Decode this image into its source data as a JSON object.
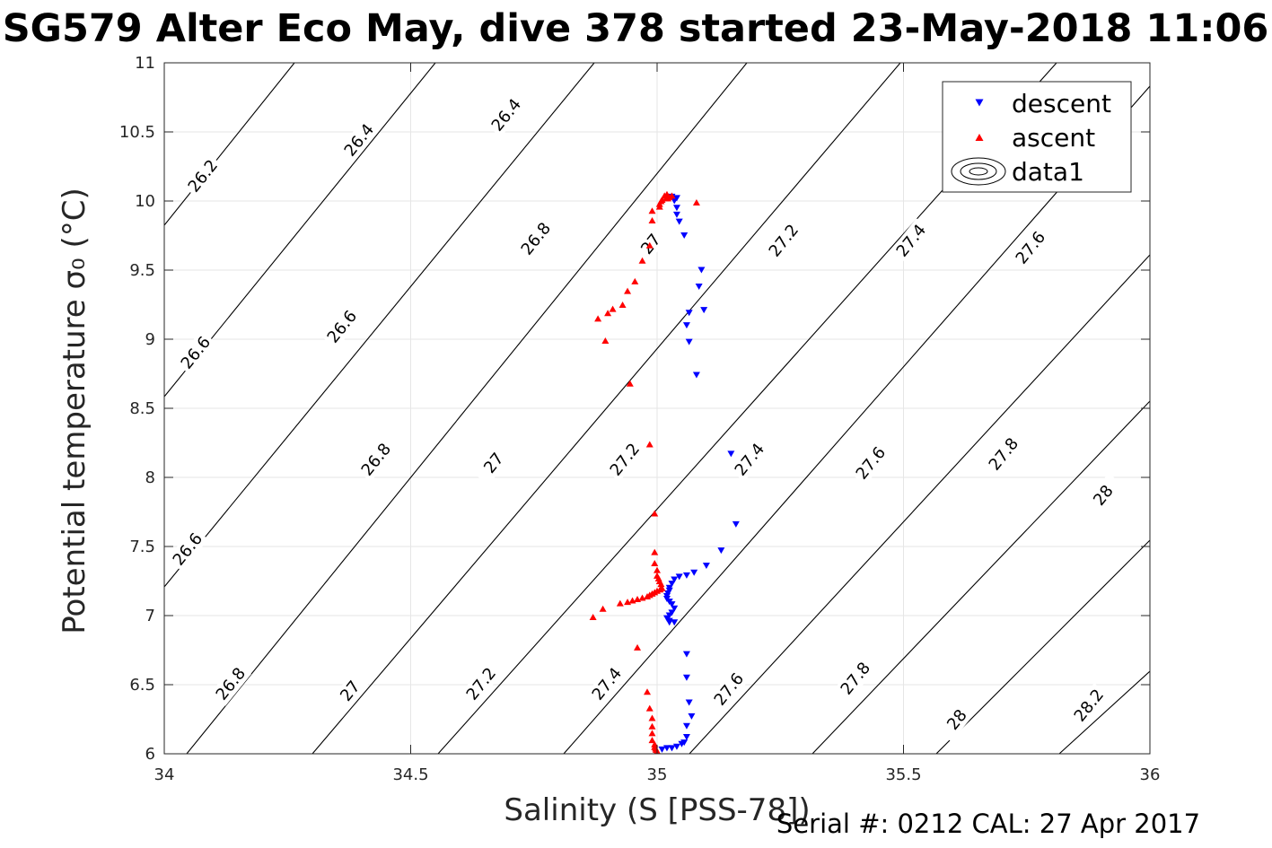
{
  "title": "SG579 Alter Eco May, dive 378 started 23-May-2018 11:06",
  "footnote": "Serial #: 0212  CAL: 27 Apr 2017",
  "chart_data": {
    "type": "scatter",
    "xlabel": "Salinity (S [PSS-78])",
    "ylabel": "Potential temperature σ₀ (°C)",
    "xlim": [
      34,
      36
    ],
    "ylim": [
      6,
      11
    ],
    "xticks": [
      34,
      34.5,
      35,
      35.5,
      36
    ],
    "yticks": [
      6,
      6.5,
      7,
      7.5,
      8,
      8.5,
      9,
      9.5,
      10,
      10.5,
      11
    ],
    "grid": true,
    "legend_position": "top-right",
    "legend": [
      "descent",
      "ascent",
      "data1"
    ],
    "colors": {
      "descent": "#0000ff",
      "ascent": "#ff0000",
      "contours": "#000000"
    },
    "contours": {
      "series_name": "data1",
      "label_values": [
        26.2,
        26.4,
        26.6,
        26.8,
        27,
        27.2,
        27.4,
        27.6,
        27.8,
        28,
        28.2
      ],
      "labels": [
        "26.2",
        "26.4",
        "26.4",
        "26.6",
        "26.6",
        "26.6",
        "26.8",
        "26.8",
        "26.8",
        "27",
        "27",
        "27",
        "27.2",
        "27.2",
        "27.2",
        "27.4",
        "27.4",
        "27.4",
        "27.6",
        "27.6",
        "27.6",
        "27.8",
        "27.8",
        "28",
        "28",
        "28.2"
      ]
    },
    "series": [
      {
        "name": "descent",
        "marker": "down-triangle",
        "x": [
          35.03,
          35.04,
          35.035,
          35.04,
          35.04,
          35.045,
          35.055,
          35.09,
          35.085,
          35.095,
          35.065,
          35.06,
          35.065,
          35.08,
          35.15,
          35.16,
          35.13,
          35.1,
          35.075,
          35.06,
          35.045,
          35.035,
          35.03,
          35.025,
          35.025,
          35.022,
          35.02,
          35.02,
          35.025,
          35.03,
          35.035,
          35.03,
          35.025,
          35.02,
          35.025,
          35.025,
          35.035,
          35.06,
          35.06,
          35.065,
          35.07,
          35.06,
          35.06,
          35.055,
          35.05,
          35.04,
          35.03,
          35.02,
          35.01
        ],
        "y": [
          10.03,
          10.02,
          10.0,
          9.95,
          9.9,
          9.85,
          9.75,
          9.5,
          9.38,
          9.21,
          9.19,
          9.1,
          8.98,
          8.74,
          8.17,
          7.66,
          7.47,
          7.36,
          7.31,
          7.29,
          7.28,
          7.26,
          7.23,
          7.2,
          7.18,
          7.16,
          7.14,
          7.12,
          7.1,
          7.08,
          7.05,
          7.02,
          7.0,
          6.98,
          6.96,
          6.95,
          6.95,
          6.72,
          6.55,
          6.37,
          6.27,
          6.2,
          6.12,
          6.08,
          6.07,
          6.05,
          6.04,
          6.04,
          6.03
        ]
      },
      {
        "name": "ascent",
        "marker": "up-triangle",
        "x": [
          35.02,
          35.03,
          35.015,
          35.025,
          35.022,
          35.018,
          35.01,
          35.008,
          35.005,
          35.005,
          35.08,
          34.99,
          34.99,
          34.985,
          34.97,
          34.955,
          34.94,
          34.93,
          34.91,
          34.9,
          34.88,
          34.895,
          34.945,
          34.985,
          34.995,
          34.995,
          34.995,
          35.0,
          35.0,
          35.003,
          35.005,
          35.008,
          35.01,
          35.006,
          35.0,
          34.995,
          34.99,
          34.985,
          34.98,
          34.97,
          34.96,
          34.95,
          34.94,
          34.925,
          34.89,
          34.87,
          34.96,
          34.98,
          34.985,
          34.99,
          34.99,
          34.99,
          34.99,
          34.995,
          34.995,
          34.997,
          34.998,
          35.0,
          35.0,
          35.0
        ],
        "y": [
          10.05,
          10.04,
          10.04,
          10.03,
          10.02,
          10.02,
          10.01,
          10.0,
          9.98,
          9.96,
          9.99,
          9.93,
          9.86,
          9.68,
          9.57,
          9.42,
          9.35,
          9.25,
          9.22,
          9.19,
          9.15,
          8.99,
          8.68,
          8.24,
          7.74,
          7.46,
          7.38,
          7.33,
          7.29,
          7.27,
          7.25,
          7.23,
          7.2,
          7.19,
          7.18,
          7.17,
          7.16,
          7.15,
          7.14,
          7.13,
          7.12,
          7.11,
          7.1,
          7.09,
          7.05,
          6.99,
          6.77,
          6.45,
          6.33,
          6.26,
          6.2,
          6.15,
          6.1,
          6.07,
          6.05,
          6.04,
          6.03,
          6.02,
          6.01,
          6.0
        ]
      }
    ]
  }
}
